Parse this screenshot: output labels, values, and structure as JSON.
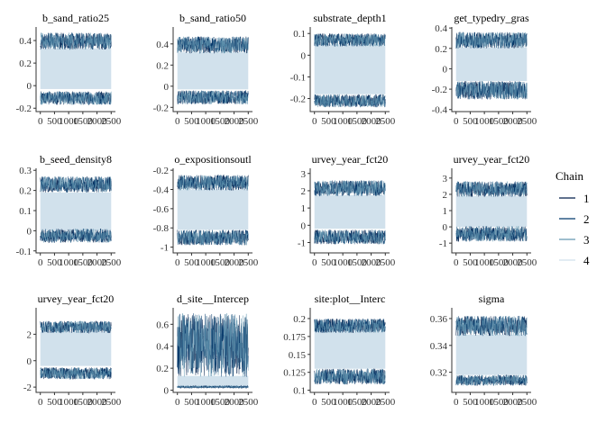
{
  "chart_data": {
    "type": "line",
    "legend": {
      "title": "Chain",
      "placement": "right",
      "entries": [
        {
          "name": "1",
          "color": "#011f4b"
        },
        {
          "name": "2",
          "color": "#03396c"
        },
        {
          "name": "3",
          "color": "#6497b1"
        },
        {
          "name": "4",
          "color": "#d1e1ec"
        }
      ]
    },
    "panels": [
      {
        "title": "b_sand_ratio25",
        "yticks": [
          -0.2,
          0.0,
          0.2,
          0.4
        ],
        "ylim": [
          -0.23,
          0.52
        ],
        "band": [
          -0.03,
          0.33
        ],
        "outer": [
          [
            -0.17,
            -0.05
          ],
          [
            0.32,
            0.47
          ]
        ]
      },
      {
        "title": "b_sand_ratio50",
        "yticks": [
          -0.2,
          0.0,
          0.2,
          0.4
        ],
        "ylim": [
          -0.24,
          0.56
        ],
        "band": [
          -0.03,
          0.32
        ],
        "outer": [
          [
            -0.17,
            -0.04
          ],
          [
            0.31,
            0.47
          ]
        ]
      },
      {
        "title": "substrate_depth1",
        "yticks": [
          -0.2,
          -0.1,
          0.0,
          0.1
        ],
        "ylim": [
          -0.26,
          0.13
        ],
        "band": [
          -0.18,
          0.05
        ],
        "outer": [
          [
            -0.24,
            -0.18
          ],
          [
            0.04,
            0.1
          ]
        ]
      },
      {
        "title": "get_typedry_gras",
        "yticks": [
          -0.4,
          -0.2,
          0.0,
          0.2,
          0.4
        ],
        "ylim": [
          -0.42,
          0.41
        ],
        "band": [
          -0.12,
          0.21
        ],
        "outer": [
          [
            -0.3,
            -0.12
          ],
          [
            0.2,
            0.36
          ]
        ]
      },
      {
        "title": "b_seed_density8",
        "yticks": [
          -0.1,
          0.0,
          0.1,
          0.2,
          0.3
        ],
        "ylim": [
          -0.11,
          0.31
        ],
        "band": [
          0.0,
          0.19
        ],
        "outer": [
          [
            -0.06,
            0.01
          ],
          [
            0.19,
            0.27
          ]
        ]
      },
      {
        "title": "o_expositionsoutl",
        "yticks": [
          -1.0,
          -0.8,
          -0.6,
          -0.4,
          -0.2
        ],
        "ylim": [
          -1.06,
          -0.18
        ],
        "band": [
          -0.82,
          -0.4
        ],
        "outer": [
          [
            -0.98,
            -0.82
          ],
          [
            -0.41,
            -0.25
          ]
        ]
      },
      {
        "title": "urvey_year_fct20",
        "yticks": [
          -1,
          0,
          1,
          2,
          3
        ],
        "ylim": [
          -1.6,
          3.3
        ],
        "band": [
          -0.2,
          1.75
        ],
        "outer": [
          [
            -1.1,
            -0.25
          ],
          [
            1.7,
            2.6
          ]
        ]
      },
      {
        "title": "urvey_year_fct20",
        "yticks": [
          -1,
          0,
          1,
          2,
          3
        ],
        "ylim": [
          -1.6,
          3.6
        ],
        "band": [
          0.0,
          1.9
        ],
        "outer": [
          [
            -0.9,
            0.05
          ],
          [
            1.85,
            2.8
          ]
        ]
      },
      {
        "title": "urvey_year_fct20",
        "yticks": [
          -2,
          0,
          2
        ],
        "ylim": [
          -2.4,
          4.0
        ],
        "band": [
          -0.4,
          2.2
        ],
        "outer": [
          [
            -1.4,
            -0.5
          ],
          [
            2.1,
            3.0
          ]
        ]
      },
      {
        "title": "d_site__Intercep",
        "yticks": [
          0.0,
          0.2,
          0.4,
          0.6
        ],
        "ylim": [
          -0.02,
          0.75
        ],
        "band": [
          0.03,
          0.13
        ],
        "outer": [
          [
            0.02,
            0.04
          ],
          [
            0.12,
            0.7
          ]
        ]
      },
      {
        "title": "site:plot__Interc",
        "yticks": [
          0.1,
          0.125,
          0.15,
          0.175,
          0.2
        ],
        "ylim": [
          0.097,
          0.215
        ],
        "band": [
          0.13,
          0.185
        ],
        "outer": [
          [
            0.108,
            0.13
          ],
          [
            0.18,
            0.2
          ]
        ]
      },
      {
        "title": "sigma",
        "yticks": [
          0.32,
          0.34,
          0.36
        ],
        "ylim": [
          0.305,
          0.368
        ],
        "band": [
          0.318,
          0.348
        ],
        "outer": [
          [
            0.31,
            0.318
          ],
          [
            0.347,
            0.362
          ]
        ]
      }
    ],
    "x": {
      "ticks": [
        0,
        500,
        1000,
        1500,
        2000,
        2500
      ],
      "xlim": [
        -150,
        2650
      ]
    },
    "grid": false
  }
}
